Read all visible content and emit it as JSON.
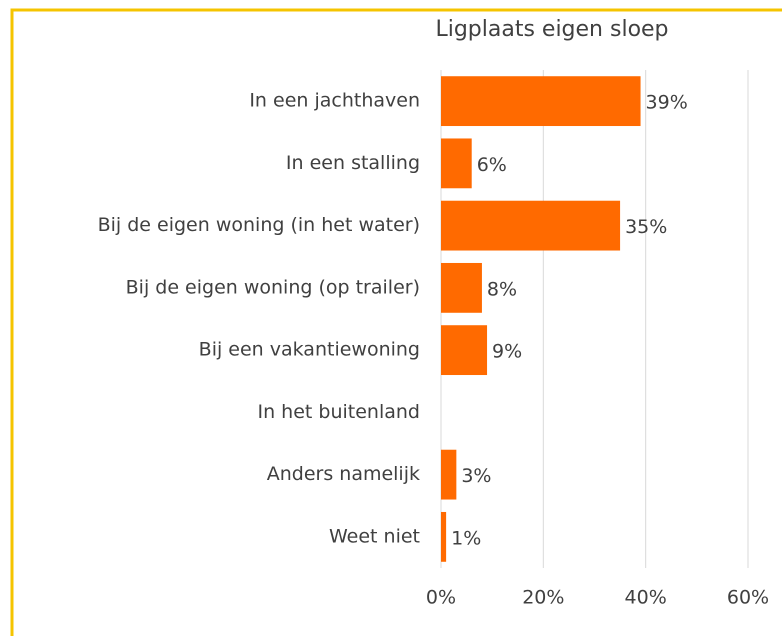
{
  "chart_data": {
    "type": "hbar",
    "title": "Ligplaats eigen sloep",
    "categories": [
      "In een jachthaven",
      "In een stalling",
      "Bij de eigen woning (in het water)",
      "Bij de eigen woning (op trailer)",
      "Bij een vakantiewoning",
      "In het buitenland",
      "Anders namelijk",
      "Weet niet"
    ],
    "values": [
      39,
      6,
      35,
      8,
      9,
      null,
      3,
      1
    ],
    "value_labels": [
      "39%",
      "6%",
      "35%",
      "8%",
      "9%",
      null,
      "3%",
      "1%"
    ],
    "color": "#ff6a00",
    "xlim": [
      0,
      60
    ],
    "xticks": [
      {
        "value": 0,
        "label": "0%"
      },
      {
        "value": 20,
        "label": "20%"
      },
      {
        "value": 40,
        "label": "40%"
      },
      {
        "value": 60,
        "label": "60%"
      }
    ],
    "grid": true
  }
}
